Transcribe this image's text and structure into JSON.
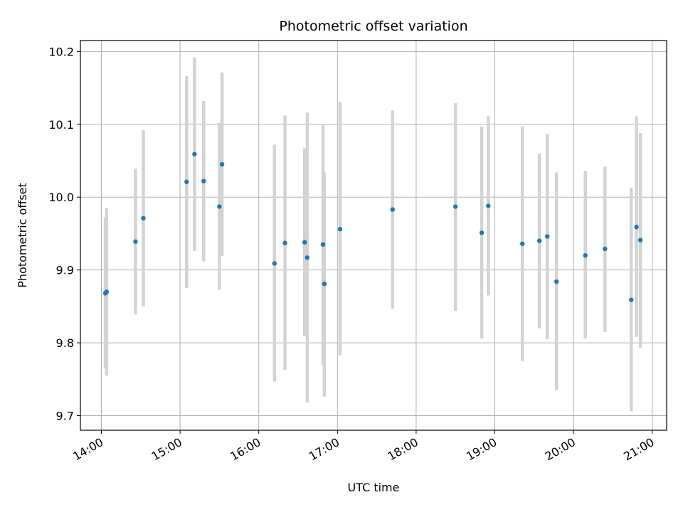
{
  "chart_data": {
    "type": "scatter",
    "title": "Photometric offset variation",
    "xlabel": "UTC time",
    "ylabel": "Photometric offset",
    "x_ticks": [
      "14:00",
      "15:00",
      "16:00",
      "17:00",
      "18:00",
      "19:00",
      "20:00",
      "21:00"
    ],
    "y_ticks": [
      "9.7",
      "9.8",
      "9.9",
      "10.0",
      "10.1",
      "10.2"
    ],
    "xlim": [
      "13:44",
      "21:11"
    ],
    "ylim": [
      9.68,
      10.215
    ],
    "grid": true,
    "colors": {
      "point": "#1f77b4",
      "errorbar": "#d3d3d3",
      "grid": "#b0b0b0"
    },
    "points": [
      {
        "x": "14:03",
        "y": 9.868,
        "y_low": 9.765,
        "y_high": 9.972
      },
      {
        "x": "14:04",
        "y": 9.87,
        "y_low": 9.755,
        "y_high": 9.985
      },
      {
        "x": "14:26",
        "y": 9.939,
        "y_low": 9.839,
        "y_high": 10.039
      },
      {
        "x": "14:32",
        "y": 9.971,
        "y_low": 9.85,
        "y_high": 10.092
      },
      {
        "x": "15:05",
        "y": 10.021,
        "y_low": 9.875,
        "y_high": 10.166
      },
      {
        "x": "15:11",
        "y": 10.059,
        "y_low": 9.926,
        "y_high": 10.192
      },
      {
        "x": "15:18",
        "y": 10.022,
        "y_low": 9.912,
        "y_high": 10.132
      },
      {
        "x": "15:30",
        "y": 9.987,
        "y_low": 9.873,
        "y_high": 10.102
      },
      {
        "x": "15:32",
        "y": 10.045,
        "y_low": 9.919,
        "y_high": 10.171
      },
      {
        "x": "16:12",
        "y": 9.909,
        "y_low": 9.747,
        "y_high": 10.072
      },
      {
        "x": "16:20",
        "y": 9.937,
        "y_low": 9.763,
        "y_high": 10.112
      },
      {
        "x": "16:35",
        "y": 9.938,
        "y_low": 9.809,
        "y_high": 10.067
      },
      {
        "x": "16:37",
        "y": 9.917,
        "y_low": 9.718,
        "y_high": 10.116
      },
      {
        "x": "16:49",
        "y": 9.935,
        "y_low": 9.77,
        "y_high": 10.1
      },
      {
        "x": "16:50",
        "y": 9.881,
        "y_low": 9.726,
        "y_high": 10.034
      },
      {
        "x": "17:02",
        "y": 9.956,
        "y_low": 9.783,
        "y_high": 10.131
      },
      {
        "x": "17:42",
        "y": 9.983,
        "y_low": 9.847,
        "y_high": 10.119
      },
      {
        "x": "18:30",
        "y": 9.987,
        "y_low": 9.844,
        "y_high": 10.129
      },
      {
        "x": "18:50",
        "y": 9.951,
        "y_low": 9.806,
        "y_high": 10.097
      },
      {
        "x": "18:55",
        "y": 9.988,
        "y_low": 9.865,
        "y_high": 10.111
      },
      {
        "x": "19:21",
        "y": 9.936,
        "y_low": 9.775,
        "y_high": 10.097
      },
      {
        "x": "19:34",
        "y": 9.94,
        "y_low": 9.82,
        "y_high": 10.06
      },
      {
        "x": "19:40",
        "y": 9.946,
        "y_low": 9.805,
        "y_high": 10.087
      },
      {
        "x": "19:47",
        "y": 9.884,
        "y_low": 9.735,
        "y_high": 10.034
      },
      {
        "x": "20:09",
        "y": 9.92,
        "y_low": 9.806,
        "y_high": 10.036
      },
      {
        "x": "20:24",
        "y": 9.929,
        "y_low": 9.815,
        "y_high": 10.042
      },
      {
        "x": "20:44",
        "y": 9.859,
        "y_low": 9.706,
        "y_high": 10.013
      },
      {
        "x": "20:48",
        "y": 9.959,
        "y_low": 9.808,
        "y_high": 10.111
      },
      {
        "x": "20:51",
        "y": 9.941,
        "y_low": 9.793,
        "y_high": 10.088
      }
    ]
  }
}
